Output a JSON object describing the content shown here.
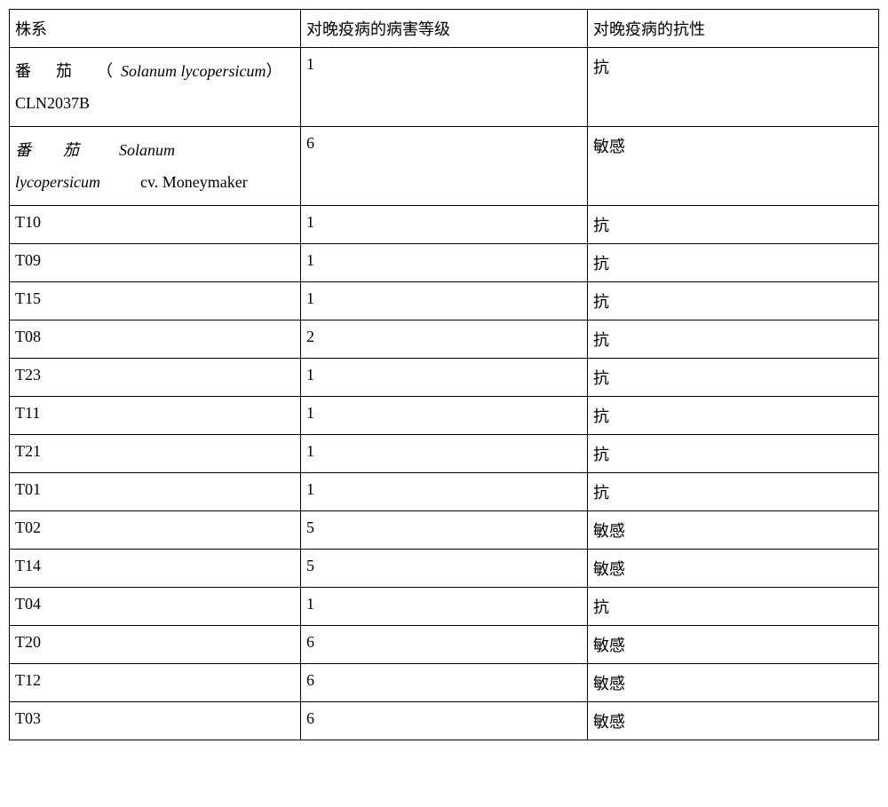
{
  "headers": {
    "col1": "株系",
    "col2": "对晚疫病的病害等级",
    "col3": "对晚疫病的抗性"
  },
  "rows": [
    {
      "strain_prefix_cn": "番茄",
      "strain_paren_open": "（",
      "strain_latin": "Solanum lycopersicum",
      "strain_paren_close": "）",
      "strain_code": "CLN2037B",
      "grade": "1",
      "resistance": "抗",
      "type": "complex1"
    },
    {
      "strain_prefix_cn": "番茄",
      "strain_latin": "Solanum lycopersicum",
      "strain_cv": "cv.",
      "strain_code": "Moneymaker",
      "grade": "6",
      "resistance": "敏感",
      "type": "complex2"
    },
    {
      "strain": "T10",
      "grade": "1",
      "resistance": "抗",
      "type": "simple"
    },
    {
      "strain": "T09",
      "grade": "1",
      "resistance": "抗",
      "type": "simple"
    },
    {
      "strain": "T15",
      "grade": "1",
      "resistance": "抗",
      "type": "simple"
    },
    {
      "strain": "T08",
      "grade": "2",
      "resistance": "抗",
      "type": "simple"
    },
    {
      "strain": "T23",
      "grade": "1",
      "resistance": "抗",
      "type": "simple"
    },
    {
      "strain": "T11",
      "grade": "1",
      "resistance": "抗",
      "type": "simple"
    },
    {
      "strain": "T21",
      "grade": "1",
      "resistance": "抗",
      "type": "simple"
    },
    {
      "strain": "T01",
      "grade": "1",
      "resistance": "抗",
      "type": "simple"
    },
    {
      "strain": "T02",
      "grade": "5",
      "resistance": "敏感",
      "type": "simple"
    },
    {
      "strain": "T14",
      "grade": "5",
      "resistance": "敏感",
      "type": "simple"
    },
    {
      "strain": "T04",
      "grade": "1",
      "resistance": "抗",
      "type": "simple"
    },
    {
      "strain": "T20",
      "grade": "6",
      "resistance": "敏感",
      "type": "simple"
    },
    {
      "strain": "T12",
      "grade": "6",
      "resistance": "敏感",
      "type": "simple"
    },
    {
      "strain": "T03",
      "grade": "6",
      "resistance": "敏感",
      "type": "simple"
    }
  ],
  "styling": {
    "border_color": "#000000",
    "background_color": "#ffffff",
    "font_size": 18,
    "cell_padding": 8
  }
}
